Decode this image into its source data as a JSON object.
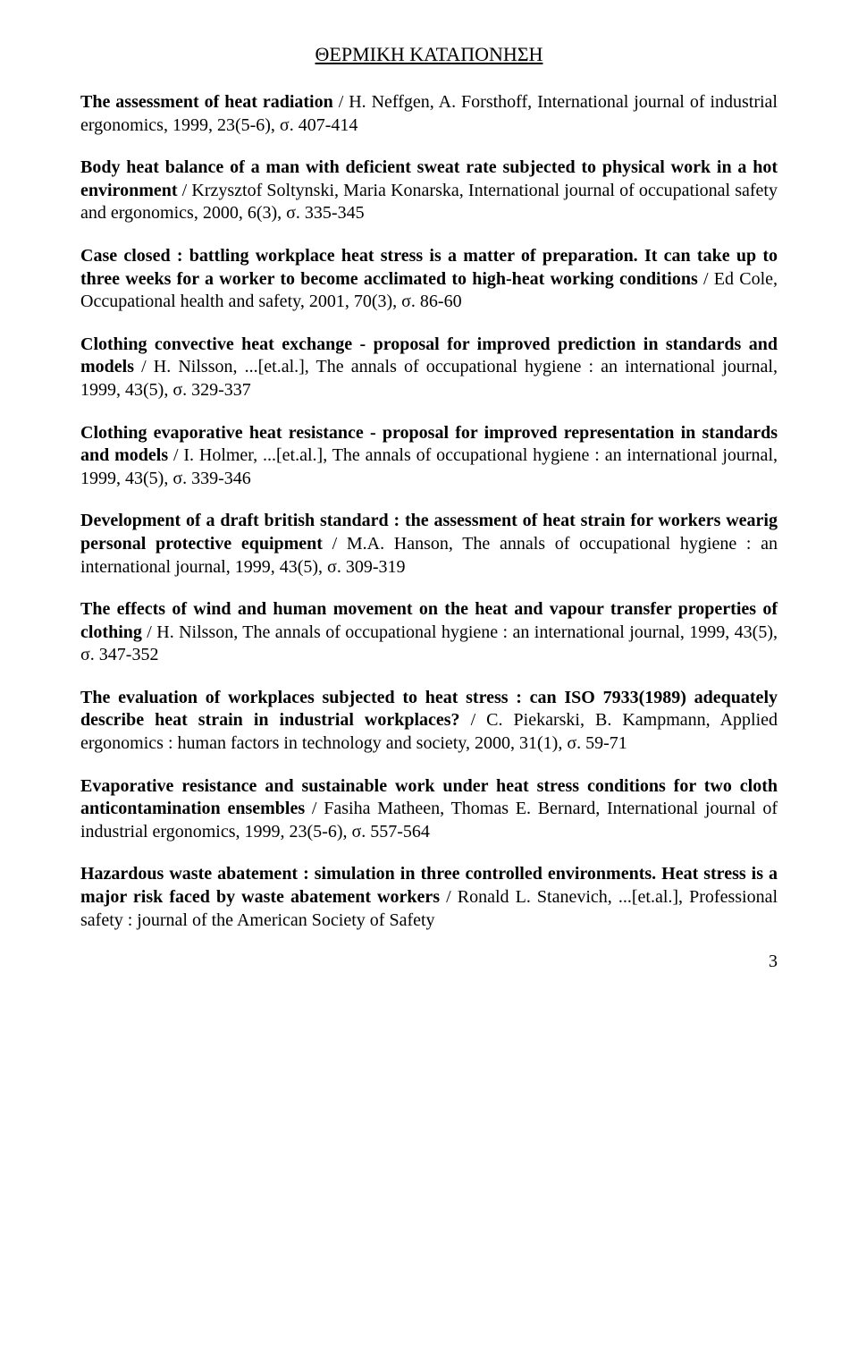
{
  "title": "ΘΕΡΜΙΚΗ ΚΑΤΑΠΟΝΗΣΗ",
  "entries": [
    {
      "bold": "The assessment of heat radiation",
      "rest": " / H. Neffgen, A. Forsthoff, International journal of industrial ergonomics, 1999,  23(5-6), σ. 407-414"
    },
    {
      "bold": "Body heat balance of a man with deficient sweat rate subjected to physical work in a hot environment",
      "rest": " / Krzysztof Soltynski, Maria Konarska, International journal of occupational safety and ergonomics, 2000, 6(3), σ. 335-345"
    },
    {
      "bold": "Case closed : battling workplace heat stress is a matter of preparation. It can take up to three weeks for a worker to become acclimated to high-heat working conditions",
      "rest": " / Ed Cole, Occupational health and safety, 2001, 70(3), σ. 86-60"
    },
    {
      "bold": "Clothing convective heat exchange - proposal for improved prediction in standards and models",
      "rest": " / H. Nilsson, ...[et.al.], The annals of occupational hygiene : an international journal, 1999, 43(5), σ. 329-337"
    },
    {
      "bold": "Clothing evaporative heat resistance - proposal for improved representation in standards and models",
      "rest": " / I. Holmer, ...[et.al.], The annals of occupational hygiene : an international journal, 1999,  43(5), σ. 339-346"
    },
    {
      "bold": "Development of a draft british standard : the assessment of heat strain for workers wearig personal protective equipment",
      "rest": " / M.A. Hanson, The annals of occupational hygiene : an international journal, 1999,  43(5), σ. 309-319"
    },
    {
      "bold": "The effects of wind and human movement on the heat and vapour transfer properties of clothing",
      "rest": " / H. Nilsson, The annals of occupational hygiene : an international journal, 1999,  43(5), σ. 347-352"
    },
    {
      "bold": "The evaluation of workplaces subjected to heat stress : can ISO 7933(1989) adequately describe heat strain in industrial workplaces?",
      "rest": " / C. Piekarski, B. Kampmann, Applied ergonomics : human factors in technology and society, 2000, 31(1), σ. 59-71"
    },
    {
      "bold": "Evaporative resistance and sustainable work under heat stress conditions for two cloth anticontamination ensembles",
      "rest": " / Fasiha Matheen, Thomas E. Bernard, International journal of industrial ergonomics, 1999, 23(5-6), σ. 557-564"
    },
    {
      "bold": "Hazardous waste abatement : simulation in three controlled environments. Heat stress is a major risk faced by waste abatement workers",
      "rest": " / Ronald L. Stanevich, ...[et.al.], Professional safety : journal of the American Society of Safety"
    }
  ],
  "pageNumber": "3"
}
